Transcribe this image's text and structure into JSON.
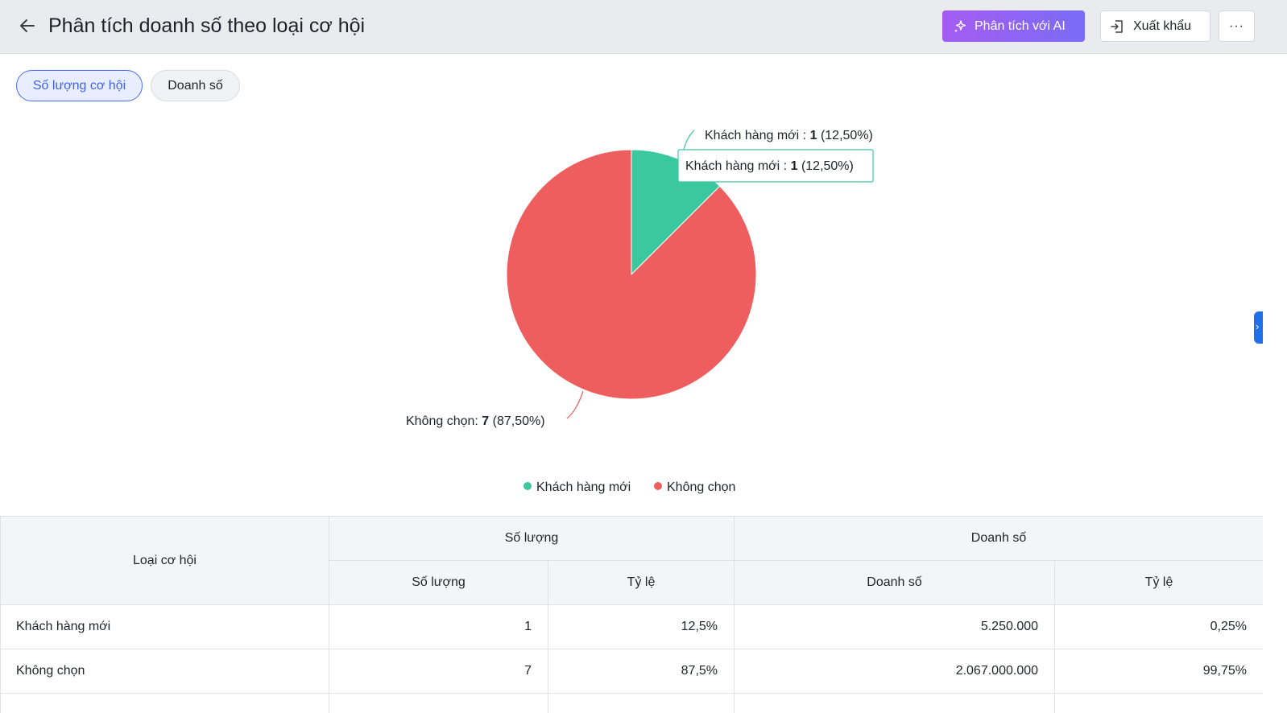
{
  "header": {
    "title": "Phân tích doanh số theo loại cơ hội",
    "ai_button": "Phân tích với AI",
    "export_button": "Xuất khẩu",
    "more_button": "···"
  },
  "tabs": [
    {
      "label": "Số lượng cơ hội",
      "active": true
    },
    {
      "label": "Doanh số",
      "active": false
    }
  ],
  "chart_data": {
    "type": "pie",
    "categories": [
      "Khách hàng mới",
      "Không chọn"
    ],
    "values": [
      1,
      7
    ],
    "percent_labels": [
      "12,50%",
      "87,50%"
    ],
    "colors": [
      "#3cc89f",
      "#ee5e5f"
    ],
    "slice_labels": [
      {
        "name": "Khách hàng mới",
        "sep": " : ",
        "value": "1",
        "pct": "(12,50%)"
      },
      {
        "name": "Không chọn",
        "sep": ": ",
        "value": "7",
        "pct": "(87,50%)"
      }
    ],
    "tooltip": {
      "name": "Khách hàng mới",
      "sep": " : ",
      "value": "1",
      "pct": "(12,50%)"
    },
    "legend": [
      "Khách hàng mới",
      "Không chọn"
    ],
    "legend_position": "bottom"
  },
  "table": {
    "group_headers": [
      "Loại cơ hội",
      "Số lượng",
      "Doanh số"
    ],
    "sub_headers": [
      "Số lượng",
      "Tỷ lệ",
      "Doanh số",
      "Tỷ lệ"
    ],
    "rows": [
      [
        "Khách hàng mới",
        "1",
        "12,5%",
        "5.250.000",
        "0,25%"
      ],
      [
        "Không chọn",
        "7",
        "87,5%",
        "2.067.000.000",
        "99,75%"
      ]
    ]
  }
}
